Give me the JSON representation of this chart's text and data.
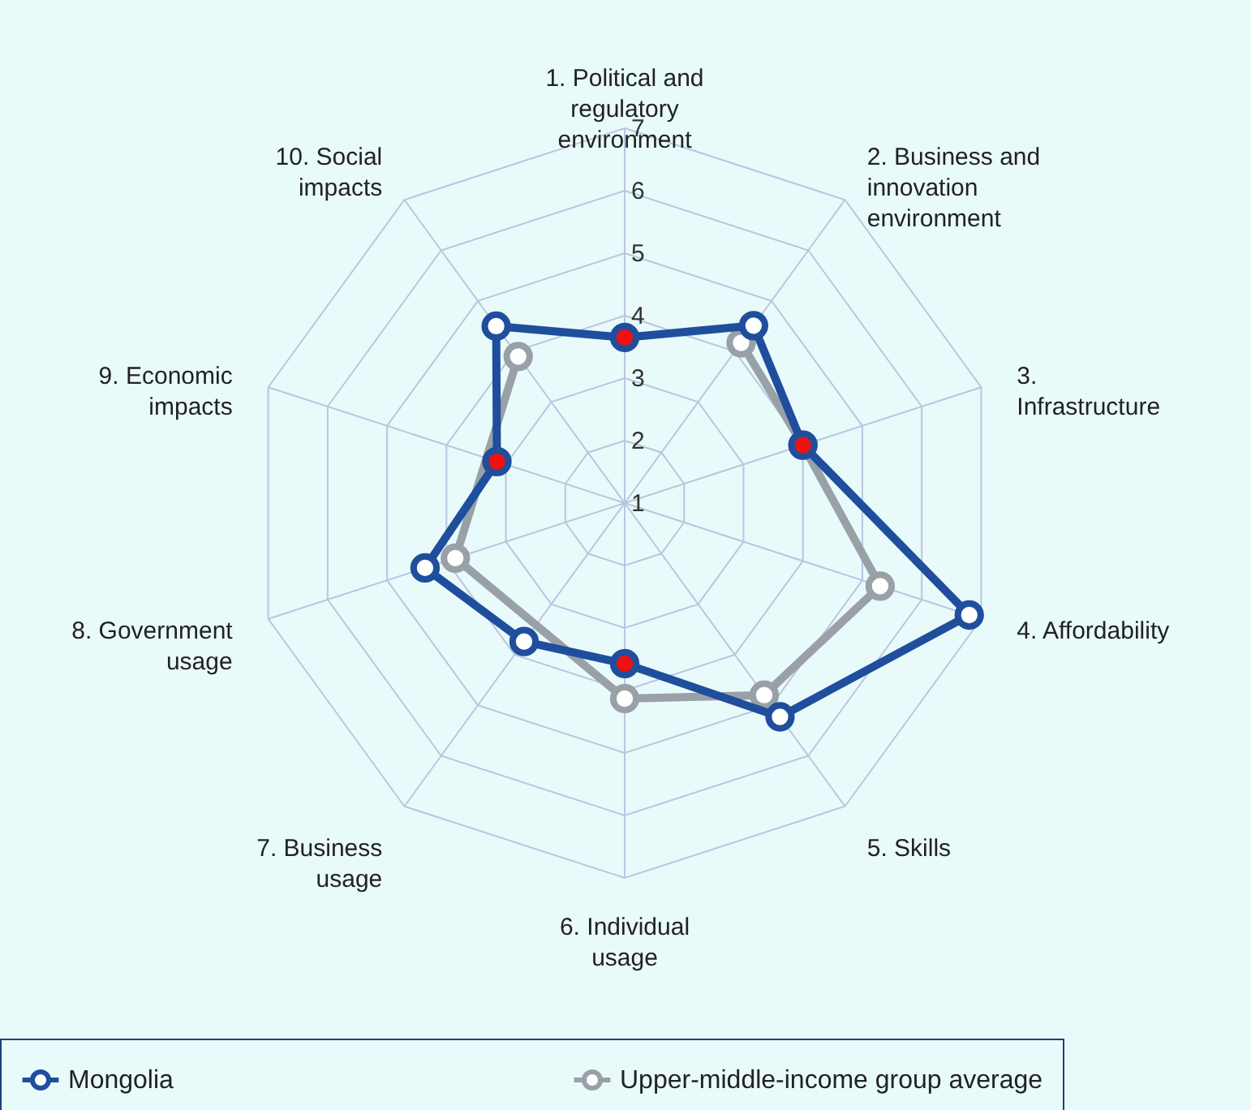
{
  "chart_data": {
    "type": "radar",
    "categories": [
      "1. Political and regulatory environment",
      "2. Business and innovation environment",
      "3. Infrastructure",
      "4. Affordability",
      "5. Skills",
      "6. Individual usage",
      "7. Business usage",
      "8. Government usage",
      "9. Economic impacts",
      "10. Social impacts"
    ],
    "ylim": [
      1,
      7
    ],
    "yticks": [
      1,
      2,
      3,
      4,
      5,
      6,
      7
    ],
    "grid": true,
    "legend": "bottom",
    "marker": "circle",
    "series": [
      {
        "name": "Mongolia",
        "color": "#1f4e9c",
        "colors": [
          "#ee1111",
          null,
          "#ee1111",
          null,
          null,
          "#ee1111",
          null,
          null,
          "#ee1111",
          null
        ],
        "values": [
          3.65,
          4.51,
          4.0,
          6.8,
          5.23,
          3.57,
          3.74,
          4.36,
          3.15,
          4.5
        ]
      },
      {
        "name": "Upper-middle-income group average",
        "color": "#9aa0a8",
        "values": [
          null,
          4.17,
          4.0,
          5.3,
          4.8,
          4.13,
          null,
          3.85,
          null,
          3.9
        ]
      }
    ]
  }
}
